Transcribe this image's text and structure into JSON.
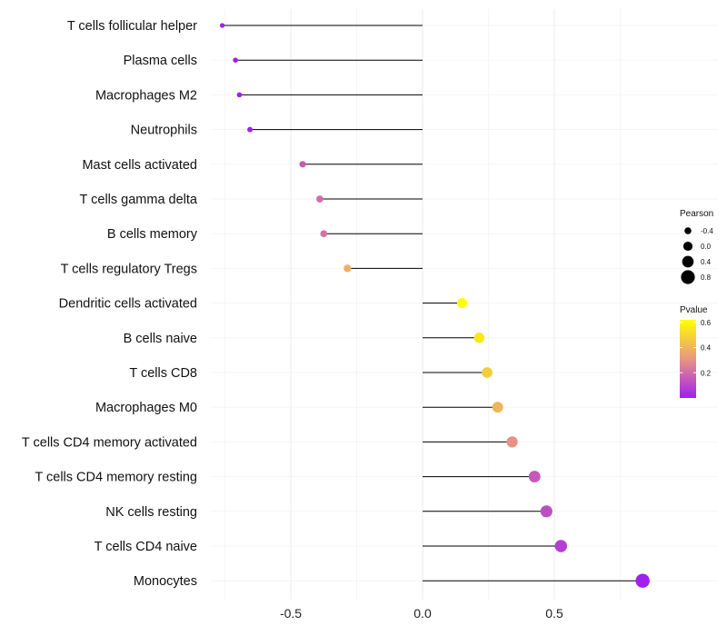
{
  "chart_data": {
    "type": "lollipop",
    "categories": [
      "T cells follicular helper",
      "Plasma cells",
      "Macrophages M2",
      "Neutrophils",
      "Mast cells activated",
      "T cells gamma delta",
      "B cells memory",
      "T cells regulatory  Tregs",
      "Dendritic cells activated",
      "B cells naive",
      "T cells CD8",
      "Macrophages M0",
      "T cells CD4 memory activated",
      "T cells CD4 memory resting",
      "NK cells resting",
      "T cells CD4 naive",
      "Monocytes"
    ],
    "pearson": [
      -0.76,
      -0.71,
      -0.695,
      -0.655,
      -0.455,
      -0.39,
      -0.375,
      -0.285,
      0.15,
      0.215,
      0.245,
      0.285,
      0.34,
      0.425,
      0.47,
      0.525,
      0.835
    ],
    "pvalue": [
      0.001,
      0.001,
      0.001,
      0.001,
      0.16,
      0.2,
      0.22,
      0.38,
      0.62,
      0.55,
      0.47,
      0.4,
      0.3,
      0.15,
      0.12,
      0.08,
      0.001
    ],
    "xlim": [
      -0.76,
      0.86
    ],
    "x_ticks": [
      -0.5,
      0.0,
      0.5
    ],
    "x_tick_labels": [
      "-0.5",
      "0.0",
      "0.5"
    ],
    "legend": {
      "size_title": "Pearson",
      "size_values": [
        -0.4,
        0.0,
        0.4,
        0.8
      ],
      "size_labels": [
        "-0.4",
        "0.0",
        "0.4",
        "0.8"
      ],
      "color_title": "Pvalue",
      "color_ticks": [
        0.2,
        0.4,
        0.6
      ],
      "color_tick_labels": [
        "0.2",
        "0.4",
        "0.6"
      ],
      "color_range": [
        0.0,
        0.62
      ],
      "color_low": "#a020f0",
      "color_high": "#ffff00"
    }
  }
}
